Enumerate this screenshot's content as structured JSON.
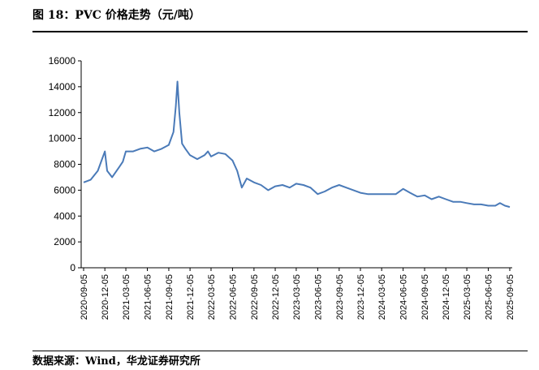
{
  "header": {
    "title": "图 18：PVC 价格走势（元/吨）"
  },
  "footer": {
    "source": "数据来源：Wind，华龙证券研究所"
  },
  "chart_data": {
    "type": "line",
    "title": "图 18：PVC 价格走势（元/吨）",
    "xlabel": "",
    "ylabel": "",
    "ylim": [
      0,
      16000
    ],
    "yticks": [
      0,
      2000,
      4000,
      6000,
      8000,
      10000,
      12000,
      14000,
      16000
    ],
    "xticks": [
      "2020-09-05",
      "2020-12-05",
      "2021-03-05",
      "2021-06-05",
      "2021-09-05",
      "2021-12-05",
      "2022-03-05",
      "2022-06-05",
      "2022-09-05",
      "2022-12-05",
      "2023-03-05",
      "2023-06-05",
      "2023-09-05",
      "2023-12-05",
      "2024-03-05",
      "2024-06-05",
      "2024-09-05",
      "2024-12-05",
      "2025-03-05",
      "2025-06-05",
      "2025-09-05"
    ],
    "grid": false,
    "legend": "none",
    "line_color": "#4a7ab8",
    "series": [
      {
        "x": [
          "2020-09-05",
          "2020-10-05",
          "2020-11-05",
          "2020-11-25",
          "2020-12-05",
          "2020-12-15",
          "2021-01-05",
          "2021-02-05",
          "2021-02-20",
          "2021-03-05",
          "2021-04-05",
          "2021-05-05",
          "2021-06-05",
          "2021-07-05",
          "2021-08-05",
          "2021-09-05",
          "2021-09-25",
          "2021-10-05",
          "2021-10-12",
          "2021-10-20",
          "2021-11-01",
          "2021-11-15",
          "2021-12-05",
          "2022-01-05",
          "2022-02-05",
          "2022-02-20",
          "2022-03-05",
          "2022-04-05",
          "2022-05-05",
          "2022-06-05",
          "2022-06-25",
          "2022-07-15",
          "2022-08-05",
          "2022-09-05",
          "2022-10-05",
          "2022-11-05",
          "2022-12-05",
          "2023-01-05",
          "2023-02-05",
          "2023-03-05",
          "2023-04-05",
          "2023-05-05",
          "2023-06-05",
          "2023-07-05",
          "2023-08-05",
          "2023-09-05",
          "2023-10-05",
          "2023-11-05",
          "2023-12-05",
          "2024-01-05",
          "2024-02-05",
          "2024-03-05",
          "2024-04-05",
          "2024-05-05",
          "2024-06-05",
          "2024-07-05",
          "2024-08-05",
          "2024-09-05",
          "2024-10-05",
          "2024-11-05",
          "2024-12-05",
          "2025-01-05",
          "2025-02-05",
          "2025-03-05",
          "2025-04-05",
          "2025-05-05",
          "2025-06-05",
          "2025-07-05",
          "2025-07-25",
          "2025-08-15",
          "2025-09-05"
        ],
        "y": [
          6600,
          6800,
          7500,
          8500,
          9000,
          7500,
          7000,
          7800,
          8200,
          9000,
          9000,
          9200,
          9300,
          9000,
          9200,
          9500,
          10500,
          12500,
          14400,
          12000,
          9600,
          9200,
          8700,
          8400,
          8700,
          9000,
          8600,
          8900,
          8800,
          8300,
          7500,
          6200,
          6900,
          6600,
          6400,
          6000,
          6300,
          6400,
          6200,
          6500,
          6400,
          6200,
          5700,
          5900,
          6200,
          6400,
          6200,
          6000,
          5800,
          5700,
          5700,
          5700,
          5700,
          5700,
          6100,
          5800,
          5500,
          5600,
          5300,
          5500,
          5300,
          5100,
          5100,
          5000,
          4900,
          4900,
          4800,
          4800,
          5000,
          4800,
          4700
        ]
      }
    ]
  }
}
